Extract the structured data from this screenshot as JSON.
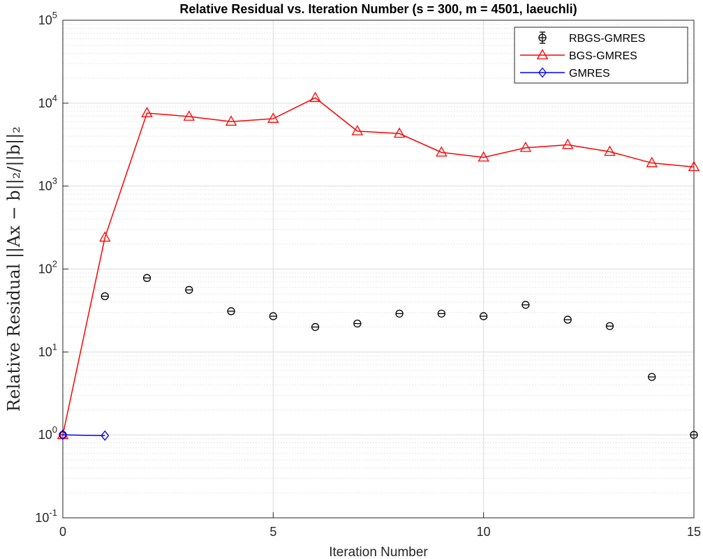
{
  "chart_data": {
    "type": "line",
    "title": "Relative Residual vs. Iteration Number (s = 300, m = 4501, laeuchli)",
    "xlabel": "Iteration Number",
    "ylabel": "Relative Residual ||Ax − b||₂/||b||₂",
    "xlim": [
      0,
      15
    ],
    "ylim": [
      0.1,
      100000
    ],
    "yscale": "log",
    "grid": true,
    "minor_grid": true,
    "legend_position": "top-right",
    "x_ticks": [
      0,
      5,
      10,
      15
    ],
    "x_tick_labels": [
      "0",
      "5",
      "10",
      "15"
    ],
    "y_ticks": [
      0.1,
      1,
      10,
      100,
      1000,
      10000,
      100000
    ],
    "y_tick_labels": [
      {
        "base": "10",
        "exp": "-1"
      },
      {
        "base": "10",
        "exp": "0"
      },
      {
        "base": "10",
        "exp": "1"
      },
      {
        "base": "10",
        "exp": "2"
      },
      {
        "base": "10",
        "exp": "3"
      },
      {
        "base": "10",
        "exp": "4"
      },
      {
        "base": "10",
        "exp": "5"
      }
    ],
    "series": [
      {
        "name": "RBGS-GMRES",
        "color": "#000000",
        "marker": "circle-errorbar",
        "line": false,
        "x": [
          0,
          1,
          2,
          3,
          4,
          5,
          6,
          7,
          8,
          9,
          10,
          11,
          12,
          13,
          14,
          15
        ],
        "y": [
          1,
          47,
          78,
          56,
          31,
          27,
          20,
          22,
          29,
          29,
          27,
          37,
          24.5,
          20.5,
          5,
          1
        ]
      },
      {
        "name": "BGS-GMRES",
        "color": "#ff0000",
        "marker": "triangle",
        "line": true,
        "x": [
          0,
          1,
          2,
          3,
          4,
          5,
          6,
          7,
          8,
          9,
          10,
          11,
          12,
          13,
          14,
          15
        ],
        "y": [
          1,
          240,
          7600,
          6900,
          6000,
          6500,
          11600,
          4600,
          4300,
          2550,
          2220,
          2900,
          3150,
          2600,
          1900,
          1700
        ]
      },
      {
        "name": "GMRES",
        "color": "#0000ff",
        "marker": "diamond",
        "line": true,
        "x": [
          0,
          1
        ],
        "y": [
          1,
          0.98
        ]
      }
    ]
  }
}
